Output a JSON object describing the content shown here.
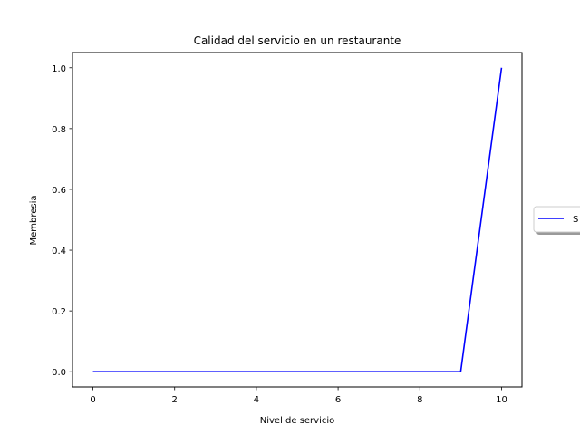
{
  "chart_data": {
    "type": "line",
    "title": "Calidad del servicio en un restaurante",
    "xlabel": "Nivel de servicio",
    "ylabel": "Membresia",
    "xlim": [
      -0.5,
      10.5
    ],
    "ylim": [
      -0.05,
      1.05
    ],
    "xticks": [
      0,
      2,
      4,
      6,
      8,
      10
    ],
    "xtick_labels": [
      "0",
      "2",
      "4",
      "6",
      "8",
      "10"
    ],
    "yticks": [
      0.0,
      0.2,
      0.4,
      0.6,
      0.8,
      1.0
    ],
    "ytick_labels": [
      "0.0",
      "0.2",
      "0.4",
      "0.6",
      "0.8",
      "1.0"
    ],
    "grid": false,
    "legend_position": "right, outside plot (clipped)",
    "series": [
      {
        "name": "S",
        "color": "#0000ff",
        "x": [
          0,
          1,
          2,
          3,
          4,
          5,
          6,
          7,
          8,
          9,
          10
        ],
        "y": [
          0,
          0,
          0,
          0,
          0,
          0,
          0,
          0,
          0,
          0,
          1
        ]
      }
    ]
  }
}
